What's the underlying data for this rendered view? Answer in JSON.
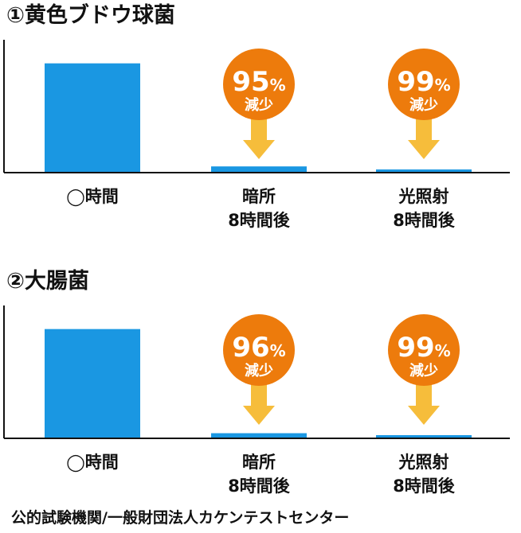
{
  "colors": {
    "bar": "#1a97e2",
    "badge": "#ed7b0c",
    "arrow": "#f6bd3b",
    "axis": "#111111",
    "text": "#111111",
    "badge_text": "#ffffff"
  },
  "footer": "公的試験機関/一般財団法人カケンテストセンター",
  "chart_data": [
    {
      "type": "bar",
      "title": "①黄色ブドウ球菌",
      "categories": [
        [
          "◯時間"
        ],
        [
          "暗所",
          "8時間後"
        ],
        [
          "光照射",
          "8時間後"
        ]
      ],
      "values": [
        100,
        5,
        1
      ],
      "ylim": [
        0,
        110
      ],
      "grid": false,
      "annotations": [
        {
          "category_index": 1,
          "percent": "95",
          "unit": "%",
          "label": "減少"
        },
        {
          "category_index": 2,
          "percent": "99",
          "unit": "%",
          "label": "減少"
        }
      ]
    },
    {
      "type": "bar",
      "title": "②大腸菌",
      "categories": [
        [
          "◯時間"
        ],
        [
          "暗所",
          "8時間後"
        ],
        [
          "光照射",
          "8時間後"
        ]
      ],
      "values": [
        100,
        4,
        1
      ],
      "ylim": [
        0,
        110
      ],
      "grid": false,
      "annotations": [
        {
          "category_index": 1,
          "percent": "96",
          "unit": "%",
          "label": "減少"
        },
        {
          "category_index": 2,
          "percent": "99",
          "unit": "%",
          "label": "減少"
        }
      ]
    }
  ]
}
